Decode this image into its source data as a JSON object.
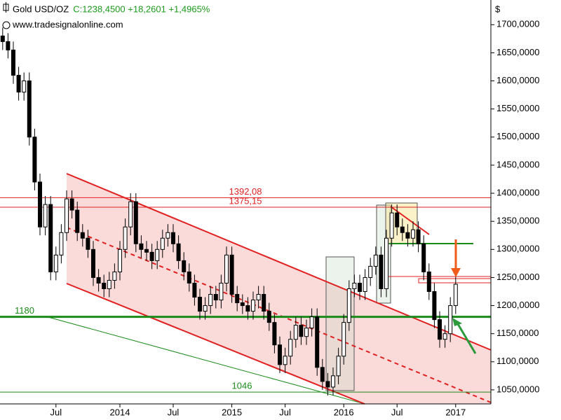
{
  "chart_data": {
    "type": "candlestick",
    "title": "Gold USD/OZ",
    "subtitle": "C:1238,4500 +18,2601 +1,4965%",
    "source": "www.tradesignalonline.com",
    "y_unit": "$",
    "up_color": "#ffffff",
    "down_color": "#000000",
    "categories": [
      null,
      null,
      null,
      null,
      null,
      null,
      null,
      null,
      null,
      null,
      "Jul",
      null,
      null,
      null,
      null,
      null,
      null,
      null,
      null,
      null,
      null,
      null,
      "2014",
      null,
      null,
      null,
      null,
      null,
      null,
      null,
      null,
      null,
      "Jul",
      null,
      null,
      null,
      null,
      null,
      null,
      null,
      null,
      null,
      null,
      "2015",
      null,
      null,
      null,
      null,
      null,
      null,
      null,
      null,
      null,
      "Jul",
      null,
      null,
      null,
      null,
      null,
      null,
      null,
      null,
      null,
      null,
      "2016",
      null,
      null,
      null,
      null,
      null,
      null,
      null,
      null,
      null,
      "Jul",
      null,
      null,
      null,
      null,
      null,
      null,
      null,
      null,
      null,
      null,
      "2017"
    ],
    "open": [
      1680,
      1670,
      1655,
      1610,
      1580,
      1600,
      1500,
      1420,
      1340,
      1380,
      1260,
      1290,
      1330,
      1390,
      1370,
      1330,
      1320,
      1300,
      1250,
      1240,
      1230,
      1245,
      1260,
      1300,
      1340,
      1385,
      1310,
      1300,
      1295,
      1280,
      1300,
      1320,
      1330,
      1310,
      1280,
      1260,
      1240,
      1215,
      1190,
      1200,
      1220,
      1210,
      1240,
      1290,
      1220,
      1205,
      1200,
      1190,
      1210,
      1220,
      1190,
      1170,
      1130,
      1095,
      1110,
      1140,
      1165,
      1145,
      1160,
      1180,
      1090,
      1065,
      1055,
      1075,
      1110,
      1170,
      1230,
      1240,
      1225,
      1250,
      1270,
      1290,
      1230,
      1320,
      1365,
      1340,
      1330,
      1320,
      1335,
      1310,
      1260,
      1225,
      1175,
      1140,
      1150,
      1200
    ],
    "high": [
      1695,
      1685,
      1670,
      1625,
      1615,
      1615,
      1515,
      1435,
      1395,
      1395,
      1305,
      1345,
      1405,
      1405,
      1385,
      1345,
      1335,
      1315,
      1265,
      1255,
      1260,
      1275,
      1315,
      1355,
      1400,
      1400,
      1325,
      1315,
      1310,
      1315,
      1335,
      1345,
      1345,
      1325,
      1295,
      1275,
      1255,
      1230,
      1215,
      1235,
      1235,
      1255,
      1305,
      1305,
      1235,
      1220,
      1215,
      1225,
      1235,
      1235,
      1205,
      1185,
      1145,
      1125,
      1155,
      1180,
      1180,
      1175,
      1195,
      1195,
      1105,
      1080,
      1090,
      1125,
      1185,
      1245,
      1255,
      1255,
      1265,
      1285,
      1305,
      1305,
      1335,
      1380,
      1380,
      1355,
      1345,
      1350,
      1350,
      1325,
      1275,
      1240,
      1190,
      1165,
      1215,
      1253
    ],
    "low": [
      1655,
      1640,
      1595,
      1565,
      1565,
      1485,
      1405,
      1325,
      1325,
      1245,
      1245,
      1275,
      1315,
      1355,
      1315,
      1305,
      1285,
      1235,
      1225,
      1215,
      1215,
      1230,
      1245,
      1285,
      1325,
      1295,
      1285,
      1280,
      1265,
      1265,
      1285,
      1305,
      1295,
      1265,
      1245,
      1225,
      1200,
      1175,
      1175,
      1185,
      1195,
      1195,
      1225,
      1205,
      1190,
      1185,
      1175,
      1175,
      1195,
      1175,
      1155,
      1115,
      1080,
      1080,
      1095,
      1125,
      1130,
      1130,
      1145,
      1075,
      1050,
      1040,
      1040,
      1060,
      1095,
      1155,
      1215,
      1210,
      1210,
      1235,
      1255,
      1215,
      1215,
      1305,
      1325,
      1315,
      1305,
      1305,
      1295,
      1245,
      1210,
      1160,
      1125,
      1125,
      1135,
      1185
    ],
    "close": [
      1670,
      1655,
      1610,
      1580,
      1600,
      1500,
      1420,
      1340,
      1380,
      1260,
      1290,
      1330,
      1390,
      1370,
      1330,
      1320,
      1300,
      1250,
      1240,
      1230,
      1245,
      1260,
      1300,
      1340,
      1385,
      1310,
      1300,
      1295,
      1280,
      1300,
      1320,
      1330,
      1310,
      1280,
      1260,
      1240,
      1215,
      1190,
      1200,
      1220,
      1210,
      1240,
      1290,
      1220,
      1205,
      1200,
      1190,
      1210,
      1220,
      1190,
      1170,
      1130,
      1095,
      1110,
      1140,
      1165,
      1145,
      1160,
      1180,
      1090,
      1065,
      1055,
      1075,
      1110,
      1170,
      1230,
      1240,
      1225,
      1250,
      1270,
      1290,
      1230,
      1320,
      1365,
      1340,
      1330,
      1320,
      1335,
      1310,
      1260,
      1225,
      1175,
      1140,
      1150,
      1200,
      1238
    ],
    "ylim": [
      1025,
      1744
    ],
    "yticks": [
      {
        "value": 1050,
        "label": "1050,0000"
      },
      {
        "value": 1100,
        "label": "1100,0000"
      },
      {
        "value": 1150,
        "label": "1150,0000"
      },
      {
        "value": 1200,
        "label": "1200,0000"
      },
      {
        "value": 1250,
        "label": "1250,0000"
      },
      {
        "value": 1300,
        "label": "1300,0000"
      },
      {
        "value": 1350,
        "label": "1350,0000"
      },
      {
        "value": 1400,
        "label": "1400,0000"
      },
      {
        "value": 1450,
        "label": "1450,0000"
      },
      {
        "value": 1500,
        "label": "1500,0000"
      },
      {
        "value": 1550,
        "label": "1550,0000"
      },
      {
        "value": 1600,
        "label": "1600,0000"
      },
      {
        "value": 1650,
        "label": "1650,0000"
      },
      {
        "value": 1700,
        "label": "1700,0000"
      }
    ],
    "levels": [
      {
        "value": 1392.08,
        "label": "1392,08",
        "color": "#e02020"
      },
      {
        "value": 1375.15,
        "label": "1375,15",
        "color": "#e02020"
      },
      {
        "value": 1180,
        "label": "1180",
        "color": "#1a8a1a"
      },
      {
        "value": 1046,
        "label": "1046",
        "color": "#1a8a1a"
      }
    ]
  }
}
